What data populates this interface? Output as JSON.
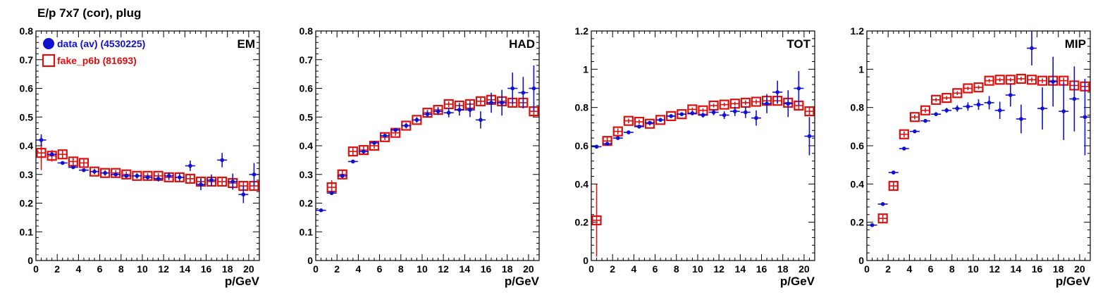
{
  "title": "E/p 7x7 (cor), plug",
  "colors": {
    "data": "#1010d0",
    "mc": "#dd1010",
    "axis": "#000000"
  },
  "legend": [
    {
      "series": "data",
      "label": "data (av) (4530225)",
      "marker": "filled-circle"
    },
    {
      "series": "mc",
      "label": "fake_p6b (81693)",
      "marker": "open-square"
    }
  ],
  "chart_data": [
    {
      "type": "scatter",
      "label": "EM",
      "xlabel": "p/GeV",
      "xlim": [
        0,
        21
      ],
      "ylim": [
        0,
        0.8
      ],
      "xticks": [
        "0",
        "2",
        "4",
        "6",
        "8",
        "10",
        "12",
        "14",
        "16",
        "18",
        "20"
      ],
      "yticks": [
        "0",
        "0.1",
        "0.2",
        "0.3",
        "0.4",
        "0.5",
        "0.6",
        "0.7",
        "0.8"
      ],
      "series": [
        {
          "name": "data (av) (4530225)",
          "x": [
            0.5,
            1.5,
            2.5,
            3.5,
            4.5,
            5.5,
            6.5,
            7.5,
            8.5,
            9.5,
            10.5,
            11.5,
            12.5,
            13.5,
            14.5,
            15.5,
            16.5,
            17.5,
            18.5,
            19.5,
            20.5
          ],
          "y": [
            0.42,
            0.37,
            0.34,
            0.325,
            0.315,
            0.31,
            0.305,
            0.3,
            0.295,
            0.295,
            0.29,
            0.285,
            0.295,
            0.29,
            0.33,
            0.265,
            0.28,
            0.35,
            0.275,
            0.23,
            0.3
          ],
          "err": [
            0.02,
            0.008,
            0.006,
            0.005,
            0.005,
            0.005,
            0.005,
            0.006,
            0.007,
            0.008,
            0.009,
            0.01,
            0.012,
            0.013,
            0.018,
            0.02,
            0.02,
            0.025,
            0.028,
            0.03,
            0.04
          ]
        },
        {
          "name": "fake_p6b (81693)",
          "x": [
            0.5,
            1.5,
            2.5,
            3.5,
            4.5,
            5.5,
            6.5,
            7.5,
            8.5,
            9.5,
            10.5,
            11.5,
            12.5,
            13.5,
            14.5,
            15.5,
            16.5,
            17.5,
            18.5,
            19.5,
            20.5
          ],
          "y": [
            0.375,
            0.365,
            0.37,
            0.345,
            0.34,
            0.31,
            0.305,
            0.305,
            0.3,
            0.295,
            0.295,
            0.295,
            0.29,
            0.29,
            0.285,
            0.275,
            0.275,
            0.275,
            0.27,
            0.26,
            0.26
          ],
          "err": [
            0.06,
            0.02,
            0.015,
            0.012,
            0.012,
            0.01,
            0.01,
            0.01,
            0.01,
            0.01,
            0.01,
            0.01,
            0.01,
            0.01,
            0.012,
            0.012,
            0.012,
            0.012,
            0.015,
            0.015,
            0.015
          ]
        }
      ]
    },
    {
      "type": "scatter",
      "label": "HAD",
      "xlabel": "p/GeV",
      "xlim": [
        0,
        21
      ],
      "ylim": [
        0,
        0.8
      ],
      "xticks": [
        "0",
        "2",
        "4",
        "6",
        "8",
        "10",
        "12",
        "14",
        "16",
        "18",
        "20"
      ],
      "yticks": [
        "0",
        "0.1",
        "0.2",
        "0.3",
        "0.4",
        "0.5",
        "0.6",
        "0.7",
        "0.8"
      ],
      "series": [
        {
          "name": "data (av) (4530225)",
          "x": [
            0.5,
            1.5,
            2.5,
            3.5,
            4.5,
            5.5,
            6.5,
            7.5,
            8.5,
            9.5,
            10.5,
            11.5,
            12.5,
            13.5,
            14.5,
            15.5,
            16.5,
            17.5,
            18.5,
            19.5,
            20.5
          ],
          "y": [
            0.175,
            0.235,
            0.295,
            0.345,
            0.38,
            0.41,
            0.435,
            0.455,
            0.47,
            0.49,
            0.51,
            0.52,
            0.515,
            0.525,
            0.525,
            0.49,
            0.55,
            0.55,
            0.6,
            0.585,
            0.6
          ],
          "err": [
            0.005,
            0.005,
            0.005,
            0.005,
            0.005,
            0.005,
            0.006,
            0.006,
            0.008,
            0.009,
            0.011,
            0.013,
            0.016,
            0.02,
            0.025,
            0.03,
            0.035,
            0.045,
            0.055,
            0.055,
            0.08
          ]
        },
        {
          "name": "fake_p6b (81693)",
          "x": [
            1.5,
            2.5,
            3.5,
            4.5,
            5.5,
            6.5,
            7.5,
            8.5,
            9.5,
            10.5,
            11.5,
            12.5,
            13.5,
            14.5,
            15.5,
            16.5,
            17.5,
            18.5,
            19.5,
            20.5
          ],
          "y": [
            0.255,
            0.3,
            0.38,
            0.385,
            0.4,
            0.43,
            0.445,
            0.47,
            0.49,
            0.515,
            0.525,
            0.545,
            0.54,
            0.545,
            0.555,
            0.56,
            0.555,
            0.55,
            0.55,
            0.52
          ],
          "err": [
            0.025,
            0.015,
            0.012,
            0.012,
            0.01,
            0.01,
            0.01,
            0.01,
            0.01,
            0.01,
            0.01,
            0.01,
            0.01,
            0.012,
            0.012,
            0.012,
            0.015,
            0.015,
            0.02,
            0.02
          ]
        }
      ]
    },
    {
      "type": "scatter",
      "label": "TOT",
      "xlabel": "p/GeV",
      "xlim": [
        0,
        21
      ],
      "ylim": [
        0,
        1.2
      ],
      "xticks": [
        "0",
        "2",
        "4",
        "6",
        "8",
        "10",
        "12",
        "14",
        "16",
        "18",
        "20"
      ],
      "yticks": [
        "0",
        "0.2",
        "0.4",
        "0.6",
        "0.8",
        "1",
        "1.2"
      ],
      "series": [
        {
          "name": "data (av) (4530225)",
          "x": [
            0.5,
            1.5,
            2.5,
            3.5,
            4.5,
            5.5,
            6.5,
            7.5,
            8.5,
            9.5,
            10.5,
            11.5,
            12.5,
            13.5,
            14.5,
            15.5,
            16.5,
            17.5,
            18.5,
            19.5,
            20.5
          ],
          "y": [
            0.595,
            0.61,
            0.64,
            0.67,
            0.7,
            0.72,
            0.735,
            0.755,
            0.765,
            0.77,
            0.76,
            0.775,
            0.76,
            0.78,
            0.775,
            0.745,
            0.82,
            0.88,
            0.82,
            0.9,
            0.65
          ],
          "err": [
            0.004,
            0.004,
            0.004,
            0.005,
            0.005,
            0.006,
            0.007,
            0.008,
            0.009,
            0.011,
            0.013,
            0.016,
            0.02,
            0.025,
            0.03,
            0.04,
            0.05,
            0.06,
            0.07,
            0.09,
            0.1
          ]
        },
        {
          "name": "fake_p6b (81693)",
          "x": [
            0.5,
            1.5,
            2.5,
            3.5,
            4.5,
            5.5,
            6.5,
            7.5,
            8.5,
            9.5,
            10.5,
            11.5,
            12.5,
            13.5,
            14.5,
            15.5,
            16.5,
            17.5,
            18.5,
            19.5,
            20.5
          ],
          "y": [
            0.21,
            0.625,
            0.675,
            0.73,
            0.725,
            0.715,
            0.735,
            0.755,
            0.765,
            0.79,
            0.785,
            0.81,
            0.815,
            0.82,
            0.825,
            0.83,
            0.835,
            0.835,
            0.825,
            0.81,
            0.78
          ],
          "err": [
            0.19,
            0.025,
            0.015,
            0.012,
            0.012,
            0.01,
            0.01,
            0.01,
            0.01,
            0.01,
            0.01,
            0.01,
            0.01,
            0.01,
            0.012,
            0.012,
            0.012,
            0.015,
            0.015,
            0.02,
            0.02
          ]
        }
      ]
    },
    {
      "type": "scatter",
      "label": "MIP",
      "xlabel": "p/GeV",
      "xlim": [
        0,
        21
      ],
      "ylim": [
        0,
        1.2
      ],
      "xticks": [
        "0",
        "2",
        "4",
        "6",
        "8",
        "10",
        "12",
        "14",
        "16",
        "18",
        "20"
      ],
      "yticks": [
        "0",
        "0.2",
        "0.4",
        "0.6",
        "0.8",
        "1",
        "1.2"
      ],
      "series": [
        {
          "name": "data (av) (4530225)",
          "x": [
            0.5,
            1.5,
            2.5,
            3.5,
            4.5,
            5.5,
            6.5,
            7.5,
            8.5,
            9.5,
            10.5,
            11.5,
            12.5,
            13.5,
            14.5,
            15.5,
            16.5,
            17.5,
            18.5,
            19.5,
            20.5
          ],
          "y": [
            0.185,
            0.295,
            0.46,
            0.585,
            0.675,
            0.73,
            0.765,
            0.785,
            0.795,
            0.805,
            0.815,
            0.825,
            0.785,
            0.865,
            0.74,
            1.11,
            0.795,
            0.935,
            0.78,
            0.845,
            0.75
          ],
          "err": [
            0.005,
            0.005,
            0.006,
            0.006,
            0.007,
            0.008,
            0.01,
            0.013,
            0.017,
            0.022,
            0.028,
            0.035,
            0.045,
            0.06,
            0.075,
            0.09,
            0.11,
            0.13,
            0.15,
            0.17,
            0.2
          ]
        },
        {
          "name": "fake_p6b (81693)",
          "x": [
            1.5,
            2.5,
            3.5,
            4.5,
            5.5,
            6.5,
            7.5,
            8.5,
            9.5,
            10.5,
            11.5,
            12.5,
            13.5,
            14.5,
            15.5,
            16.5,
            17.5,
            18.5,
            19.5,
            20.5
          ],
          "y": [
            0.22,
            0.39,
            0.66,
            0.75,
            0.785,
            0.84,
            0.85,
            0.875,
            0.9,
            0.905,
            0.94,
            0.945,
            0.945,
            0.95,
            0.945,
            0.94,
            0.94,
            0.94,
            0.915,
            0.91
          ],
          "err": [
            0.025,
            0.02,
            0.015,
            0.012,
            0.012,
            0.01,
            0.01,
            0.01,
            0.01,
            0.01,
            0.01,
            0.01,
            0.01,
            0.01,
            0.012,
            0.012,
            0.012,
            0.015,
            0.015,
            0.02
          ]
        }
      ]
    }
  ]
}
